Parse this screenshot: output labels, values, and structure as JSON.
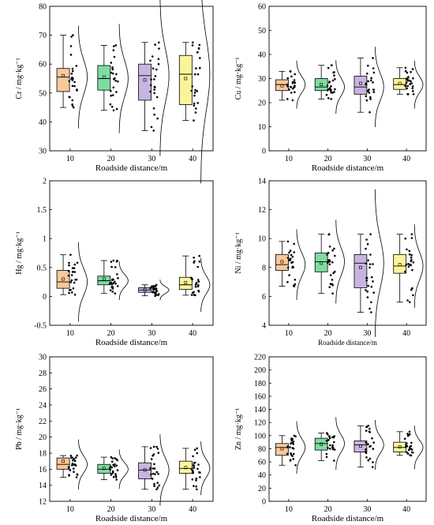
{
  "colors": {
    "10": "#f9c89b",
    "20": "#7fdca1",
    "30": "#c8b4e0",
    "40": "#fbf59a",
    "axis": "#000000"
  },
  "chart_data": [
    {
      "type": "box",
      "ylabel": "Cr / mg·kg⁻¹",
      "xlabel": "Roadside distance/m",
      "ylim": [
        30,
        80
      ],
      "yticks": [
        30,
        40,
        50,
        60,
        70,
        80
      ],
      "categories": [
        "10",
        "20",
        "30",
        "40"
      ],
      "boxes": [
        {
          "min": 45,
          "q1": 50.5,
          "median": 55.5,
          "q3": 58.5,
          "max": 70,
          "mean": 56
        },
        {
          "min": 44,
          "q1": 51,
          "median": 55,
          "q3": 59.5,
          "max": 66.5,
          "mean": 55.5
        },
        {
          "min": 37,
          "q1": 47.5,
          "median": 56,
          "q3": 60,
          "max": 67.5,
          "mean": 54.5
        },
        {
          "min": 40.5,
          "q1": 46,
          "median": 56.5,
          "q3": 63,
          "max": 67.5,
          "mean": 55
        }
      ]
    },
    {
      "type": "box",
      "ylabel": "Cu / mg·kg⁻¹",
      "xlabel": "Roadside distance/m",
      "ylim": [
        0,
        60
      ],
      "yticks": [
        0,
        10,
        20,
        30,
        40,
        50,
        60
      ],
      "categories": [
        "10",
        "20",
        "30",
        "40"
      ],
      "boxes": [
        {
          "min": 21,
          "q1": 25,
          "median": 27.5,
          "q3": 29.5,
          "max": 33,
          "mean": 27
        },
        {
          "min": 21.5,
          "q1": 25,
          "median": 26.5,
          "q3": 30,
          "max": 35.5,
          "mean": 27.5
        },
        {
          "min": 16,
          "q1": 23.5,
          "median": 26.5,
          "q3": 31,
          "max": 38.5,
          "mean": 28
        },
        {
          "min": 23.5,
          "q1": 25.5,
          "median": 27.5,
          "q3": 30,
          "max": 34.5,
          "mean": 28
        }
      ]
    },
    {
      "type": "box",
      "ylabel": "Hg / mg·kg⁻¹",
      "xlabel": "Roadside distance/m",
      "ylim": [
        -0.5,
        2.0
      ],
      "yticks": [
        -0.5,
        0.0,
        0.5,
        1.0,
        1.5,
        2.0
      ],
      "categories": [
        "10",
        "20",
        "30",
        "40"
      ],
      "boxes": [
        {
          "min": 0.03,
          "q1": 0.14,
          "median": 0.25,
          "q3": 0.45,
          "max": 0.72,
          "mean": 0.3
        },
        {
          "min": 0.05,
          "q1": 0.2,
          "median": 0.27,
          "q3": 0.35,
          "max": 0.62,
          "mean": 0.3
        },
        {
          "min": 0.01,
          "q1": 0.07,
          "median": 0.11,
          "q3": 0.15,
          "max": 0.2,
          "mean": 0.11
        },
        {
          "min": 0.02,
          "q1": 0.12,
          "median": 0.2,
          "q3": 0.33,
          "max": 0.7,
          "mean": 0.24
        }
      ]
    },
    {
      "type": "box",
      "ylabel": "Ni / mg·kg⁻¹",
      "xlabel": "Roadside distance/m",
      "ylim": [
        4,
        14
      ],
      "yticks": [
        4,
        6,
        8,
        10,
        12,
        14
      ],
      "categories": [
        "10",
        "20",
        "30",
        "40"
      ],
      "boxes": [
        {
          "min": 6.7,
          "q1": 7.8,
          "median": 8.2,
          "q3": 8.9,
          "max": 9.8,
          "mean": 8.4
        },
        {
          "min": 6.2,
          "q1": 7.7,
          "median": 8.4,
          "q3": 9.0,
          "max": 10.3,
          "mean": 8.3
        },
        {
          "min": 4.9,
          "q1": 6.6,
          "median": 8.3,
          "q3": 8.9,
          "max": 10.3,
          "mean": 8.0
        },
        {
          "min": 5.6,
          "q1": 7.6,
          "median": 8.1,
          "q3": 8.9,
          "max": 10.3,
          "mean": 8.2
        }
      ]
    },
    {
      "type": "box",
      "ylabel": "Pb / mg·kg⁻¹",
      "xlabel": "Roadside distance/m",
      "ylim": [
        12,
        30
      ],
      "yticks": [
        12,
        14,
        16,
        18,
        20,
        22,
        24,
        26,
        28,
        30
      ],
      "categories": [
        "10",
        "20",
        "30",
        "40"
      ],
      "boxes": [
        {
          "min": 15,
          "q1": 16,
          "median": 16.6,
          "q3": 17.4,
          "max": 17.7,
          "mean": 17
        },
        {
          "min": 14.7,
          "q1": 15.5,
          "median": 16,
          "q3": 16.6,
          "max": 17.5,
          "mean": 16.1
        },
        {
          "min": 13.5,
          "q1": 14.8,
          "median": 15.9,
          "q3": 16.8,
          "max": 18.8,
          "mean": 15.9
        },
        {
          "min": 13.5,
          "q1": 15.5,
          "median": 16.1,
          "q3": 17,
          "max": 18.6,
          "mean": 16.2
        }
      ]
    },
    {
      "type": "box",
      "ylabel": "Zn / mg·kg⁻¹",
      "xlabel": "Roadside distance/m",
      "ylim": [
        0,
        220
      ],
      "yticks": [
        0,
        20,
        40,
        60,
        80,
        100,
        120,
        140,
        160,
        180,
        200,
        220
      ],
      "categories": [
        "10",
        "20",
        "30",
        "40"
      ],
      "boxes": [
        {
          "min": 55,
          "q1": 70,
          "median": 82,
          "q3": 88,
          "max": 100,
          "mean": 80
        },
        {
          "min": 62,
          "q1": 78,
          "median": 88,
          "q3": 96,
          "max": 104,
          "mean": 87
        },
        {
          "min": 52,
          "q1": 75,
          "median": 86,
          "q3": 92,
          "max": 115,
          "mean": 84
        },
        {
          "min": 70,
          "q1": 75,
          "median": 82,
          "q3": 90,
          "max": 106,
          "mean": 83
        }
      ]
    }
  ]
}
